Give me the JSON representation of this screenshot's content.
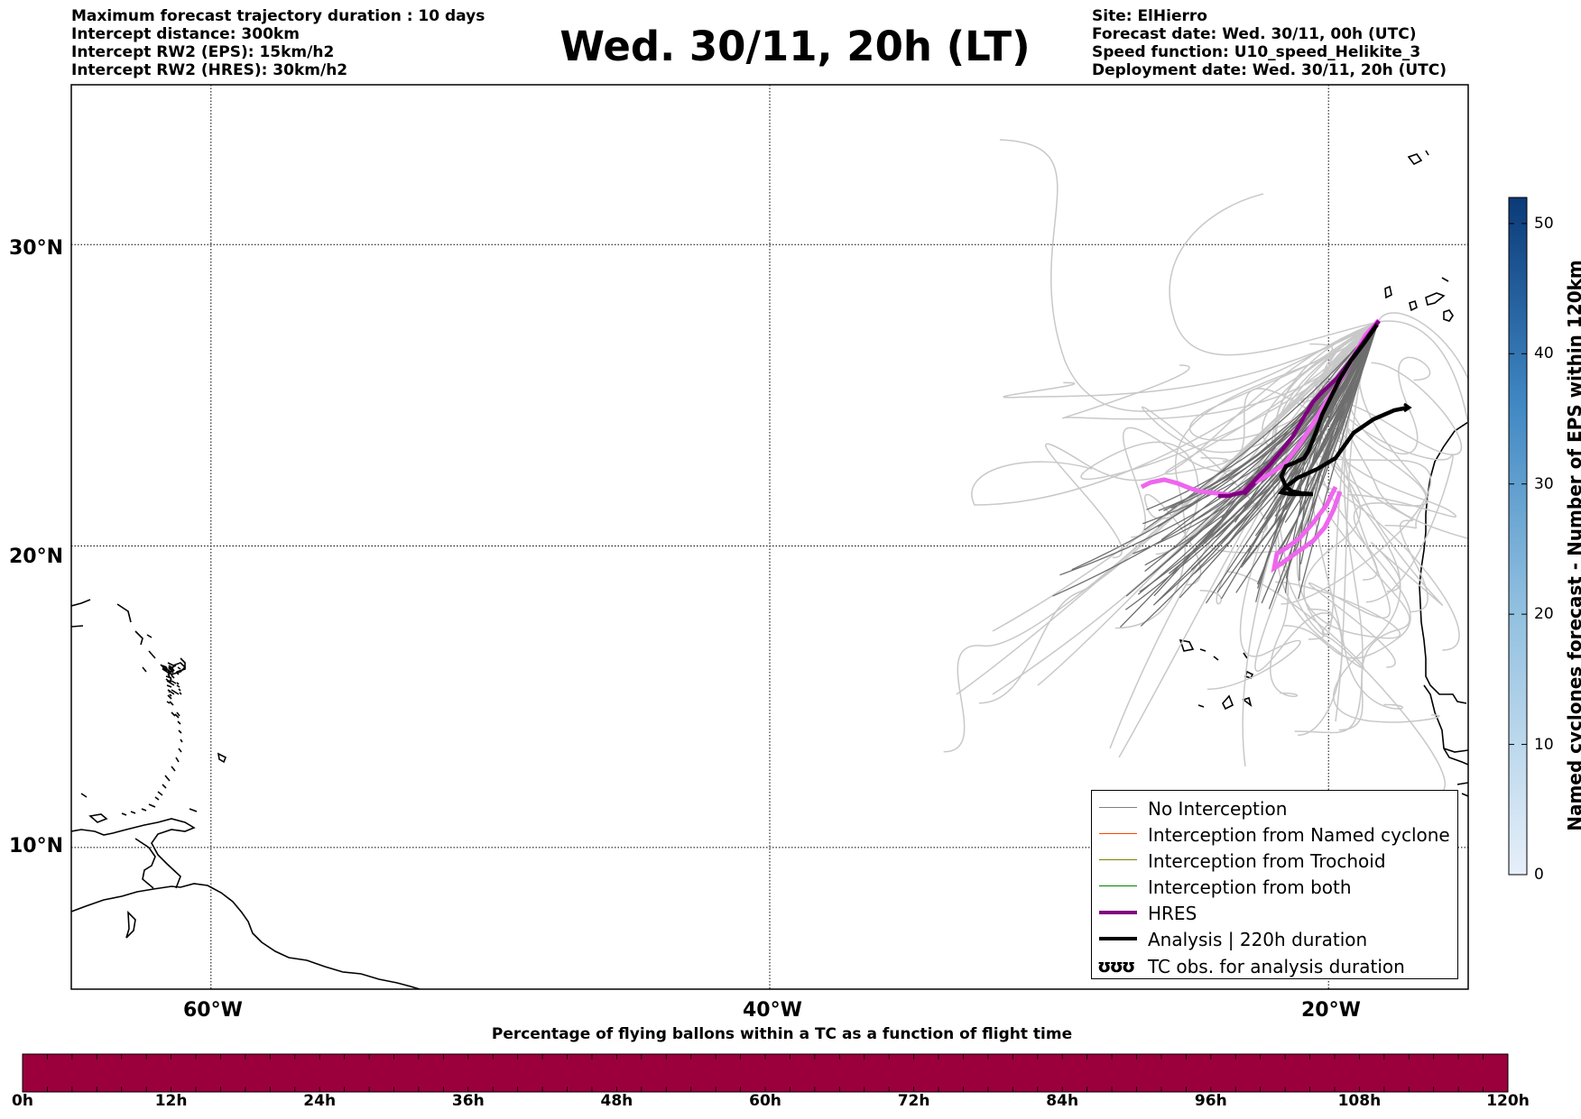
{
  "header": {
    "info_left": [
      "Maximum forecast trajectory duration : 10 days",
      "Intercept distance: 300km",
      "Intercept RW2 (EPS):  15km/h2",
      "Intercept RW2 (HRES): 30km/h2"
    ],
    "title": "Wed. 30/11, 20h (LT)",
    "info_right": [
      "Site: ElHierro",
      "Forecast date: Wed. 30/11, 00h (UTC)",
      "Speed function: U10_speed_Helikite_3",
      "Deployment date: Wed. 30/11, 20h (UTC)"
    ]
  },
  "map": {
    "lat_labels": [
      "30°N",
      "20°N",
      "10°N"
    ],
    "lon_labels": [
      "60°W",
      "40°W",
      "20°W"
    ],
    "lat_lines": [
      30,
      20,
      10
    ],
    "lon_lines": [
      -60,
      -40,
      -20
    ],
    "extent": {
      "lon_min": -65,
      "lon_max": -15,
      "lat_min": 5.3,
      "lat_max": 35.3
    }
  },
  "legend": {
    "items": [
      {
        "label": "No Interception",
        "color": "#808080",
        "width": 1.5
      },
      {
        "label": "Interception from Named cyclone",
        "color": "#ff4500",
        "width": 1.5
      },
      {
        "label": "Interception from Trochoid",
        "color": "#808000",
        "width": 1.5
      },
      {
        "label": "Interception from both",
        "color": "#008000",
        "width": 1.5
      },
      {
        "label": "HRES",
        "color": "#800080",
        "width": 4
      },
      {
        "label": "Analysis | 220h duration",
        "color": "#000000",
        "width": 4
      }
    ],
    "obs_symbol": "ʊʊʊ",
    "obs_label": "TC obs. for analysis duration"
  },
  "colorbar": {
    "label": "Named cyclones forecast - Number of EPS within 120km",
    "ticks": [
      "0",
      "10",
      "20",
      "30",
      "40",
      "50"
    ],
    "tick_values": [
      0,
      10,
      20,
      30,
      40,
      50
    ],
    "max": 52,
    "color_low": "#e6eff9",
    "color_high": "#0b3a78"
  },
  "flight_bar": {
    "title": "Percentage of flying ballons within a TC as a function of flight time",
    "ticks": [
      "0h",
      "12h",
      "24h",
      "36h",
      "48h",
      "60h",
      "72h",
      "84h",
      "96h",
      "108h",
      "120h"
    ],
    "fill_color": "#9c003c"
  },
  "colors": {
    "ensemble_light": "#c8c8c8",
    "ensemble_dark": "#6e6e6e",
    "hres": "#800080",
    "analysis": "#000000",
    "hres_tail": "#ee66ee"
  }
}
